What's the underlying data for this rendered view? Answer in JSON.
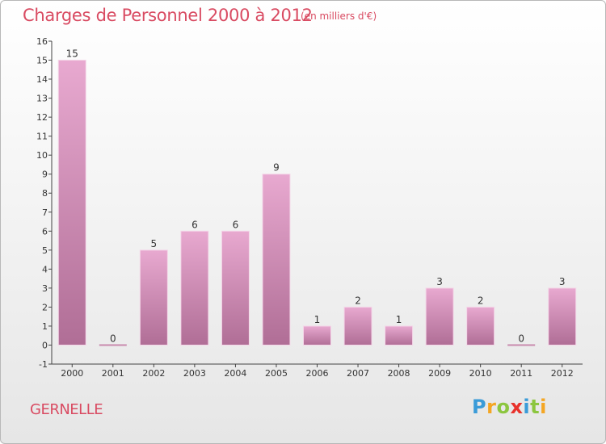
{
  "header": {
    "title": "Charges de Personnel 2000 à 2012",
    "subtitle": "(en milliers d'€)"
  },
  "footer": {
    "commune": "GERNELLE",
    "logo_letters": [
      {
        "ch": "P",
        "color": "#3a9bd8"
      },
      {
        "ch": "r",
        "color": "#f4a623"
      },
      {
        "ch": "o",
        "color": "#8cc63f"
      },
      {
        "ch": "x",
        "color": "#e8322c"
      },
      {
        "ch": "i",
        "color": "#3a9bd8"
      },
      {
        "ch": "t",
        "color": "#8cc63f"
      },
      {
        "ch": "i",
        "color": "#f4a623"
      }
    ]
  },
  "chart_data": {
    "type": "bar",
    "title": "Charges de Personnel 2000 à 2012",
    "subtitle": "(en milliers d'€)",
    "categories": [
      "2000",
      "2001",
      "2002",
      "2003",
      "2004",
      "2005",
      "2006",
      "2007",
      "2008",
      "2009",
      "2010",
      "2011",
      "2012"
    ],
    "values": [
      15,
      0,
      5,
      6,
      6,
      9,
      1,
      2,
      1,
      3,
      2,
      0,
      3
    ],
    "ylim": [
      -1,
      16
    ],
    "yticks": [
      -1,
      0,
      1,
      2,
      3,
      4,
      5,
      6,
      7,
      8,
      9,
      10,
      11,
      12,
      13,
      14,
      15,
      16
    ],
    "grid": false,
    "bar_color": "#d590b8"
  }
}
